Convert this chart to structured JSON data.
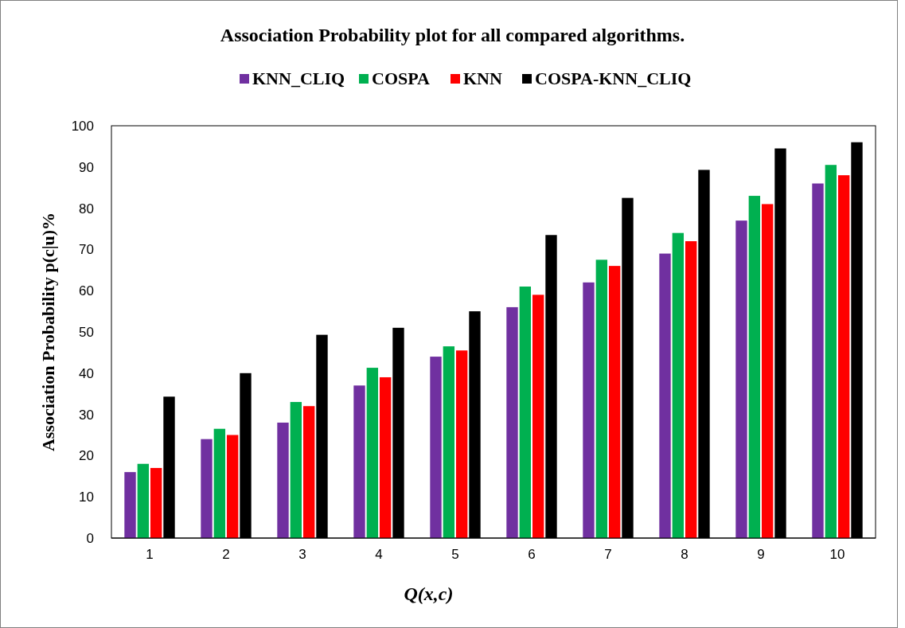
{
  "chart_data": {
    "type": "bar",
    "title": "Association Probability plot for all compared algorithms.",
    "xlabel": "Q(x,c)",
    "ylabel": "Association Probability p(c|u)%",
    "categories": [
      "1",
      "2",
      "3",
      "4",
      "5",
      "6",
      "7",
      "8",
      "9",
      "10"
    ],
    "series": [
      {
        "name": "KNN_CLIQ",
        "color": "#7030a0",
        "values": [
          16,
          24,
          28,
          37,
          44,
          56,
          62,
          69,
          77,
          86
        ]
      },
      {
        "name": "COSPA",
        "color": "#00b050",
        "values": [
          18,
          26.5,
          33,
          41.3,
          46.5,
          61,
          67.5,
          74,
          83,
          90.5
        ]
      },
      {
        "name": "KNN",
        "color": "#ff0000",
        "values": [
          17,
          25,
          32,
          39,
          45.5,
          59,
          66,
          72,
          81,
          88
        ]
      },
      {
        "name": "COSPA-KNN_CLIQ",
        "color": "#000000",
        "values": [
          34.3,
          40,
          49.3,
          51,
          55,
          73.5,
          82.5,
          89.3,
          94.5,
          96
        ]
      }
    ],
    "ylim": [
      0,
      100
    ],
    "yticks": [
      0,
      10,
      20,
      30,
      40,
      50,
      60,
      70,
      80,
      90,
      100
    ],
    "grid": false,
    "legend": "top"
  }
}
